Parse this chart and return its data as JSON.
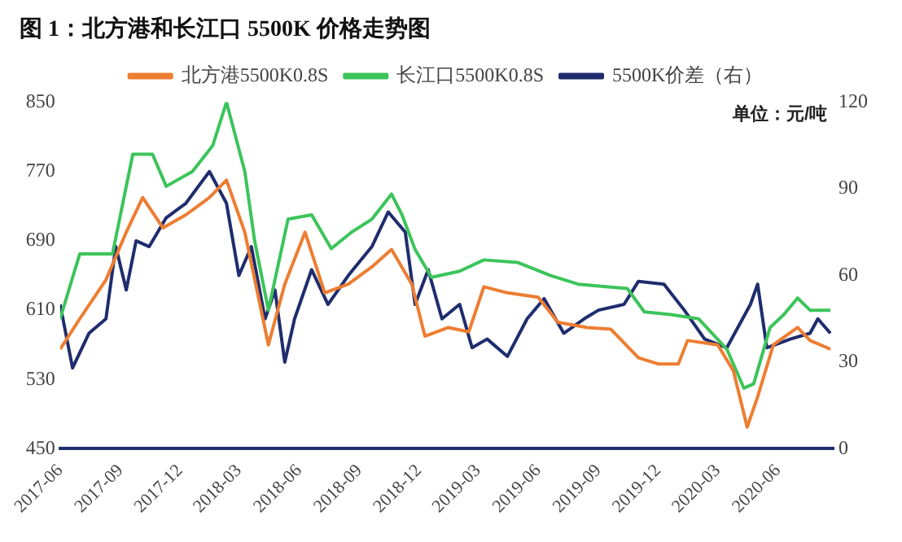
{
  "chart_data": {
    "type": "line",
    "title": "图 1：北方港和长江口 5500K 价格走势图",
    "annotations": [
      "单位：元/吨"
    ],
    "legend": "top",
    "grid": false,
    "marker": "none",
    "line_style": "solid",
    "xlim": [
      "2017-06-01",
      "2020-08-25"
    ],
    "xticks": [
      "2017-06",
      "2017-09",
      "2017-12",
      "2018-03",
      "2018-06",
      "2018-09",
      "2018-12",
      "2019-03",
      "2019-06",
      "2019-09",
      "2019-12",
      "2020-03",
      "2020-06"
    ],
    "ylim": [
      450,
      850
    ],
    "yticks": [
      450,
      530,
      610,
      690,
      770,
      850
    ],
    "y2lim": [
      0,
      120
    ],
    "y2ticks": [
      0,
      30,
      60,
      90,
      120
    ],
    "series": [
      {
        "name": "北方港5500K0.8S",
        "color": "#ed7d31",
        "x": [
          "2017-06-01",
          "2017-07-01",
          "2017-08-10",
          "2017-09-10",
          "2017-10-05",
          "2017-11-05",
          "2017-12-10",
          "2018-01-15",
          "2018-02-10",
          "2018-03-10",
          "2018-04-15",
          "2018-05-10",
          "2018-06-10",
          "2018-07-10",
          "2018-08-15",
          "2018-09-20",
          "2018-10-20",
          "2018-11-20",
          "2018-12-10",
          "2019-01-15",
          "2019-02-15",
          "2019-03-10",
          "2019-04-15",
          "2019-06-01",
          "2019-07-01",
          "2019-08-15",
          "2019-09-20",
          "2019-11-01",
          "2019-12-01",
          "2020-01-01",
          "2020-01-15",
          "2020-03-01",
          "2020-03-25",
          "2020-04-15",
          "2020-05-01",
          "2020-05-25",
          "2020-07-01",
          "2020-07-20",
          "2020-08-20"
        ],
        "values": [
          565,
          600,
          645,
          700,
          740,
          705,
          720,
          740,
          760,
          700,
          570,
          640,
          700,
          630,
          640,
          660,
          680,
          640,
          580,
          590,
          585,
          637,
          630,
          625,
          596,
          590,
          588,
          555,
          548,
          548,
          575,
          570,
          540,
          475,
          510,
          570,
          590,
          575,
          565
        ]
      },
      {
        "name": "长江口5500K0.8S",
        "color": "#3cc45a",
        "x": [
          "2017-06-01",
          "2017-07-01",
          "2017-08-20",
          "2017-09-20",
          "2017-10-20",
          "2017-11-10",
          "2017-12-20",
          "2018-01-20",
          "2018-02-10",
          "2018-03-10",
          "2018-03-25",
          "2018-04-15",
          "2018-05-15",
          "2018-06-20",
          "2018-07-20",
          "2018-08-20",
          "2018-09-20",
          "2018-10-20",
          "2018-11-05",
          "2018-11-25",
          "2018-12-20",
          "2019-02-01",
          "2019-03-10",
          "2019-05-01",
          "2019-06-20",
          "2019-08-01",
          "2019-10-15",
          "2019-11-10",
          "2019-12-20",
          "2020-02-01",
          "2020-03-15",
          "2020-04-10",
          "2020-04-25",
          "2020-05-20",
          "2020-06-10",
          "2020-07-01",
          "2020-07-20",
          "2020-08-20"
        ],
        "values": [
          600,
          675,
          675,
          790,
          790,
          753,
          770,
          800,
          850,
          770,
          690,
          610,
          715,
          720,
          681,
          700,
          715,
          744,
          720,
          680,
          648,
          655,
          668,
          665,
          650,
          640,
          635,
          608,
          605,
          600,
          565,
          520,
          525,
          590,
          605,
          624,
          610,
          610
        ]
      },
      {
        "name": "5500K价差（右）",
        "color": "#1f2d6e",
        "axis": "y2",
        "x": [
          "2017-06-01",
          "2017-06-20",
          "2017-07-15",
          "2017-08-10",
          "2017-08-25",
          "2017-09-10",
          "2017-09-25",
          "2017-10-15",
          "2017-11-10",
          "2017-12-10",
          "2018-01-15",
          "2018-02-10",
          "2018-03-01",
          "2018-03-20",
          "2018-04-10",
          "2018-04-25",
          "2018-05-10",
          "2018-05-25",
          "2018-06-20",
          "2018-07-15",
          "2018-08-15",
          "2018-09-20",
          "2018-10-15",
          "2018-11-10",
          "2018-11-25",
          "2018-12-15",
          "2019-01-05",
          "2019-02-01",
          "2019-02-20",
          "2019-03-15",
          "2019-04-15",
          "2019-05-15",
          "2019-06-10",
          "2019-07-10",
          "2019-08-10",
          "2019-09-01",
          "2019-10-10",
          "2019-11-01",
          "2019-12-10",
          "2020-01-10",
          "2020-02-10",
          "2020-03-15",
          "2020-04-20",
          "2020-05-01",
          "2020-05-15",
          "2020-06-20",
          "2020-07-20",
          "2020-08-01",
          "2020-08-20"
        ],
        "values": [
          50,
          28,
          40,
          45,
          70,
          55,
          72,
          70,
          80,
          85,
          96,
          85,
          60,
          70,
          45,
          55,
          30,
          45,
          62,
          50,
          60,
          70,
          82,
          75,
          50,
          62,
          45,
          50,
          35,
          38,
          32,
          45,
          52,
          40,
          45,
          48,
          50,
          58,
          57,
          48,
          38,
          35,
          50,
          57,
          35,
          38,
          40,
          45,
          40
        ]
      }
    ]
  }
}
